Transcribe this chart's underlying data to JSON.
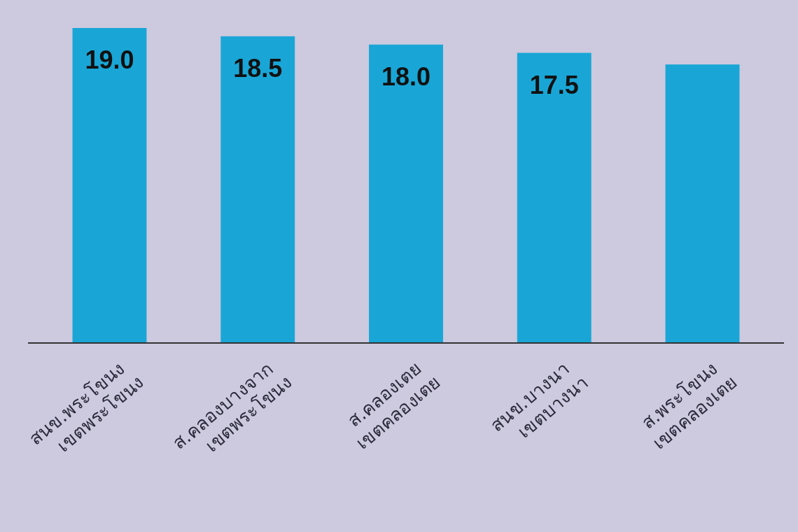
{
  "chart_data": {
    "type": "bar",
    "categories": [
      "สนข.พระโขนง เขตพระโขนง",
      "ส.คลองบางจาก เขตพระโขนง",
      "ส.คลองเตย เขตคลองเตย",
      "สนข.บางนา เขตบางนา",
      "ส.พระโขนง เขตคลองเตย"
    ],
    "values": [
      19.0,
      18.5,
      18.0,
      17.5,
      16.8
    ],
    "color": "#19a6d6",
    "value_labels": [
      "19.0",
      "18.5",
      "18.0",
      "17.5",
      null
    ]
  }
}
